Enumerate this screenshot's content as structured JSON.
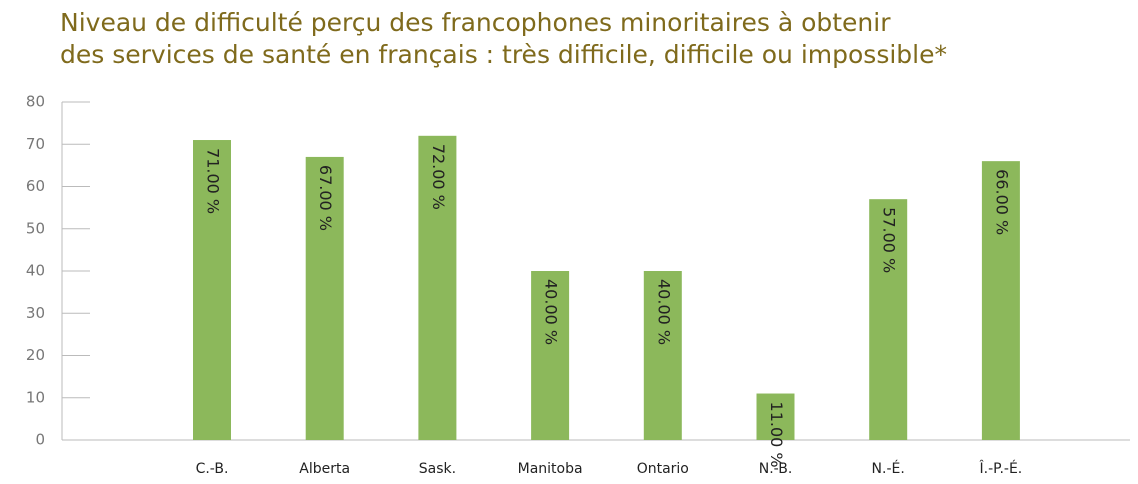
{
  "chart_data": {
    "type": "bar",
    "title": [
      "Niveau de difficulté perçu des francophones minoritaires à obtenir",
      "des services de santé en français : très difficile, difficile ou impossible*"
    ],
    "categories": [
      "C.-B.",
      "Alberta",
      "Sask.",
      "Manitoba",
      "Ontario",
      "N.-B.",
      "N.-É.",
      "Î.-P.-É."
    ],
    "values": [
      71,
      67,
      72,
      40,
      40,
      11,
      57,
      66
    ],
    "value_labels": [
      "71.00 %",
      "67.00 %",
      "72.00 %",
      "40.00 %",
      "40.00 %",
      "11.00 %",
      "57.00 %",
      "66.00 %"
    ],
    "color": "#8cb85b",
    "ylim": [
      0,
      80
    ],
    "yticks": [
      0,
      10,
      20,
      30,
      40,
      50,
      60,
      70,
      80
    ]
  }
}
